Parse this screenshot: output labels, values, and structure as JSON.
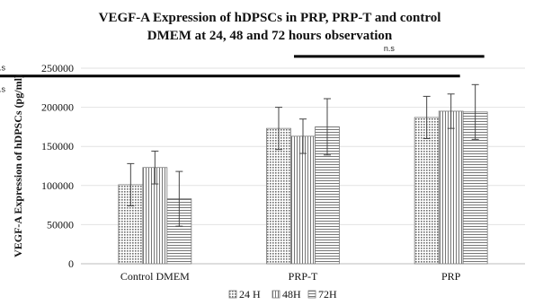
{
  "chart_data": {
    "type": "bar",
    "title_line1": "VEGF-A Expression of hDPSCs in PRP, PRP-T and control",
    "title_line2": "DMEM at 24, 48 and 72 hours observation",
    "ylabel": "VEGF-A Expression of hDPSCs (pg/ml)",
    "xlabel": "",
    "ylim": [
      0,
      250000
    ],
    "yticks": [
      "0",
      "50000",
      "100000",
      "150000",
      "200000",
      "250000"
    ],
    "categories": [
      "Control DMEM",
      "PRP-T",
      "PRP"
    ],
    "series": [
      {
        "name": "24 H",
        "values": [
          101000,
          173000,
          187000
        ],
        "errors": [
          27000,
          27000,
          27000
        ],
        "pattern": "dots"
      },
      {
        "name": "48H",
        "values": [
          123000,
          163000,
          195000
        ],
        "errors": [
          21000,
          22000,
          22000
        ],
        "pattern": "vertical"
      },
      {
        "name": "72H",
        "values": [
          83000,
          175000,
          194000
        ],
        "errors": [
          35000,
          36000,
          35000
        ],
        "pattern": "horizontal"
      }
    ],
    "grid": true,
    "legend_position": "bottom",
    "annotations": [
      {
        "text": "n.s",
        "from": "PRP-T 48H",
        "to": "PRP 72H",
        "level": 265000
      },
      {
        "text": "n.s",
        "from": "PRP-T 24H",
        "to": "PRP 48H",
        "level": 240000
      },
      {
        "text": "n.s",
        "from": "PRP-T 24H",
        "to": "PRP 24H",
        "level": 213000
      }
    ]
  }
}
